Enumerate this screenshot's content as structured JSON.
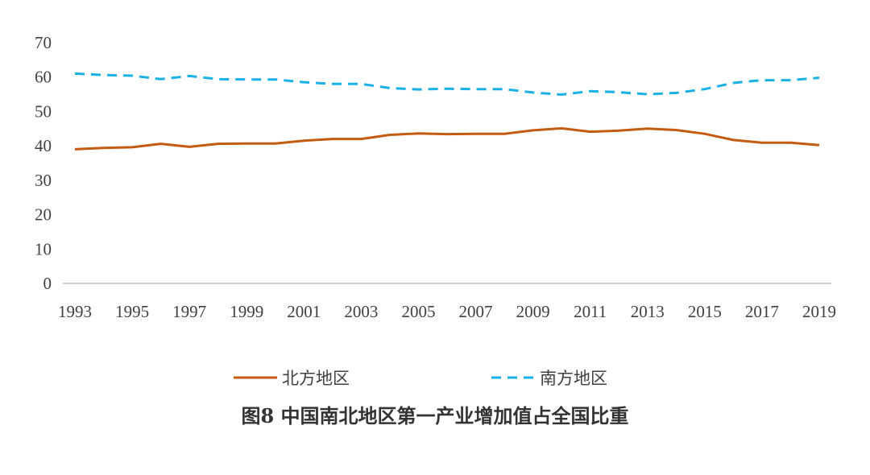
{
  "caption": "图8 中国南北地区第一产业增加值占全国比重",
  "colors": {
    "north": "#c55a11",
    "south": "#1ab0e8",
    "axis": "#bfbfbf",
    "text": "#404040"
  },
  "chart_data": {
    "type": "line",
    "title": "图8 中国南北地区第一产业增加值占全国比重",
    "xlabel": "",
    "ylabel": "",
    "ylim": [
      0,
      70
    ],
    "yticks": [
      0,
      10,
      20,
      30,
      40,
      50,
      60,
      70
    ],
    "xlim": [
      1993,
      2019
    ],
    "xtick_labels": [
      "1993",
      "1995",
      "1997",
      "1999",
      "2001",
      "2003",
      "2005",
      "2007",
      "2009",
      "2011",
      "2013",
      "2015",
      "2017",
      "2019"
    ],
    "grid": false,
    "legend_position": "bottom",
    "x": [
      1993,
      1994,
      1995,
      1996,
      1997,
      1998,
      1999,
      2000,
      2001,
      2002,
      2003,
      2004,
      2005,
      2006,
      2007,
      2008,
      2009,
      2010,
      2011,
      2012,
      2013,
      2014,
      2015,
      2016,
      2017,
      2018,
      2019
    ],
    "series": [
      {
        "name": "北方地区",
        "style": "solid",
        "values": [
          39.0,
          39.4,
          39.6,
          40.6,
          39.7,
          40.6,
          40.7,
          40.7,
          41.5,
          42.0,
          42.0,
          43.2,
          43.6,
          43.4,
          43.5,
          43.5,
          44.5,
          45.1,
          44.1,
          44.4,
          45.0,
          44.6,
          43.5,
          41.7,
          40.9,
          40.9,
          40.2
        ]
      },
      {
        "name": "南方地区",
        "style": "dashed",
        "values": [
          61.0,
          60.6,
          60.4,
          59.4,
          60.3,
          59.4,
          59.3,
          59.3,
          58.5,
          58.0,
          58.0,
          56.8,
          56.4,
          56.6,
          56.5,
          56.5,
          55.5,
          54.9,
          55.9,
          55.6,
          55.0,
          55.4,
          56.5,
          58.3,
          59.1,
          59.1,
          59.8
        ]
      }
    ]
  }
}
